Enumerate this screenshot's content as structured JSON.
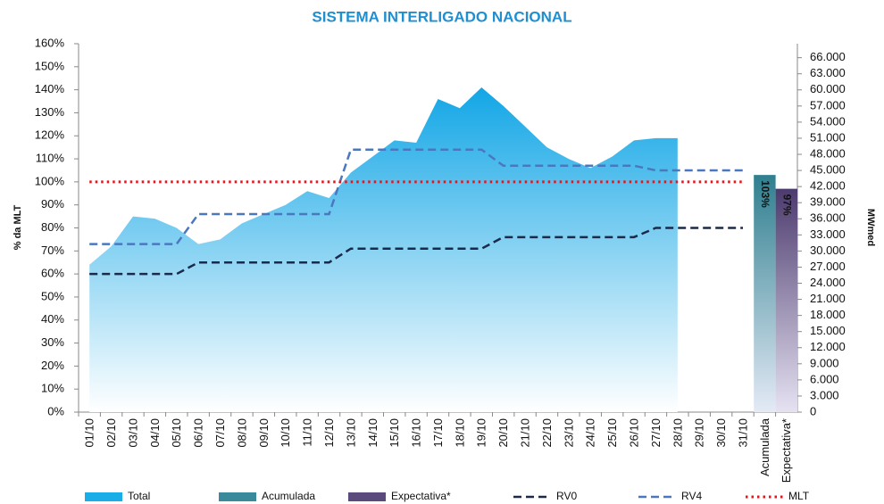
{
  "chart_data": {
    "type": "line",
    "title": "SISTEMA INTERLIGADO NACIONAL",
    "y_label": "% da MLT",
    "y2_label": "MWmed",
    "categories": [
      "01/10",
      "02/10",
      "03/10",
      "04/10",
      "05/10",
      "06/10",
      "07/10",
      "08/10",
      "09/10",
      "10/10",
      "11/10",
      "12/10",
      "13/10",
      "14/10",
      "15/10",
      "16/10",
      "17/10",
      "18/10",
      "19/10",
      "20/10",
      "21/10",
      "22/10",
      "23/10",
      "24/10",
      "25/10",
      "26/10",
      "27/10",
      "28/10",
      "29/10",
      "30/10",
      "31/10",
      "Acumulada",
      "Expectativa*"
    ],
    "series": [
      {
        "name": "Total",
        "type": "area",
        "color": "#1aaee8",
        "values": [
          64,
          72,
          85,
          84,
          80,
          73,
          75,
          82,
          86,
          90,
          96,
          93,
          104,
          111,
          118,
          117,
          136,
          132,
          141,
          133,
          124,
          115,
          110,
          106,
          111,
          118,
          119,
          119,
          null,
          null,
          null,
          null,
          null
        ]
      },
      {
        "name": "Acumulada",
        "type": "bar",
        "color": "#3a8a9c",
        "values": [
          null,
          null,
          null,
          null,
          null,
          null,
          null,
          null,
          null,
          null,
          null,
          null,
          null,
          null,
          null,
          null,
          null,
          null,
          null,
          null,
          null,
          null,
          null,
          null,
          null,
          null,
          null,
          null,
          null,
          null,
          null,
          103,
          null
        ],
        "value_labels": [
          null,
          null,
          null,
          null,
          null,
          null,
          null,
          null,
          null,
          null,
          null,
          null,
          null,
          null,
          null,
          null,
          null,
          null,
          null,
          null,
          null,
          null,
          null,
          null,
          null,
          null,
          null,
          null,
          null,
          null,
          null,
          "103%",
          null
        ]
      },
      {
        "name": "Expectativa*",
        "type": "bar",
        "color": "#5b4a7c",
        "values": [
          null,
          null,
          null,
          null,
          null,
          null,
          null,
          null,
          null,
          null,
          null,
          null,
          null,
          null,
          null,
          null,
          null,
          null,
          null,
          null,
          null,
          null,
          null,
          null,
          null,
          null,
          null,
          null,
          null,
          null,
          null,
          null,
          97
        ],
        "value_labels": [
          null,
          null,
          null,
          null,
          null,
          null,
          null,
          null,
          null,
          null,
          null,
          null,
          null,
          null,
          null,
          null,
          null,
          null,
          null,
          null,
          null,
          null,
          null,
          null,
          null,
          null,
          null,
          null,
          null,
          null,
          null,
          null,
          "97%"
        ]
      },
      {
        "name": "RV0",
        "type": "line",
        "dash": "dashed",
        "color": "#1b2a4a",
        "values": [
          60,
          60,
          60,
          60,
          60,
          65,
          65,
          65,
          65,
          65,
          65,
          65,
          71,
          71,
          71,
          71,
          71,
          71,
          71,
          76,
          76,
          76,
          76,
          76,
          76,
          76,
          80,
          80,
          80,
          80,
          80,
          null,
          null
        ]
      },
      {
        "name": "RV4",
        "type": "line",
        "dash": "dashed",
        "color": "#4a78c0",
        "values": [
          73,
          73,
          73,
          73,
          73,
          86,
          86,
          86,
          86,
          86,
          86,
          86,
          114,
          114,
          114,
          114,
          114,
          114,
          114,
          107,
          107,
          107,
          107,
          107,
          107,
          107,
          105,
          105,
          105,
          105,
          105,
          null,
          null
        ]
      },
      {
        "name": "MLT",
        "type": "line",
        "dash": "dotted",
        "color": "#e8141c",
        "values": [
          100,
          100,
          100,
          100,
          100,
          100,
          100,
          100,
          100,
          100,
          100,
          100,
          100,
          100,
          100,
          100,
          100,
          100,
          100,
          100,
          100,
          100,
          100,
          100,
          100,
          100,
          100,
          100,
          100,
          100,
          100,
          null,
          null
        ]
      }
    ],
    "ylim": [
      0,
      160
    ],
    "yticks": [
      {
        "value": 0,
        "label": "0%"
      },
      {
        "value": 10,
        "label": "10%"
      },
      {
        "value": 20,
        "label": "20%"
      },
      {
        "value": 30,
        "label": "30%"
      },
      {
        "value": 40,
        "label": "40%"
      },
      {
        "value": 50,
        "label": "50%"
      },
      {
        "value": 60,
        "label": "60%"
      },
      {
        "value": 70,
        "label": "70%"
      },
      {
        "value": 80,
        "label": "80%"
      },
      {
        "value": 90,
        "label": "90%"
      },
      {
        "value": 100,
        "label": "100%"
      },
      {
        "value": 110,
        "label": "110%"
      },
      {
        "value": 120,
        "label": "120%"
      },
      {
        "value": 130,
        "label": "130%"
      },
      {
        "value": 140,
        "label": "140%"
      },
      {
        "value": 150,
        "label": "150%"
      },
      {
        "value": 160,
        "label": "160%"
      }
    ],
    "y2lim": [
      0,
      68600
    ],
    "y2ticks": [
      0,
      {
        "value": 3000,
        "label": "3.000"
      },
      {
        "value": 6000,
        "label": "6.000"
      },
      {
        "value": 9000,
        "label": "9.000"
      },
      {
        "value": 12000,
        "label": "12.000"
      },
      {
        "value": 15000,
        "label": "15.000"
      },
      {
        "value": 18000,
        "label": "18.000"
      },
      {
        "value": 21000,
        "label": "21.000"
      },
      {
        "value": 24000,
        "label": "24.000"
      },
      {
        "value": 27000,
        "label": "27.000"
      },
      {
        "value": 30000,
        "label": "30.000"
      },
      {
        "value": 33000,
        "label": "33.000"
      },
      {
        "value": 36000,
        "label": "36.000"
      },
      {
        "value": 39000,
        "label": "39.000"
      },
      {
        "value": 42000,
        "label": "42.000"
      },
      {
        "value": 45000,
        "label": "45.000"
      },
      {
        "value": 48000,
        "label": "48.000"
      },
      {
        "value": 51000,
        "label": "51.000"
      },
      {
        "value": 54000,
        "label": "54.000"
      },
      {
        "value": 57000,
        "label": "57.000"
      },
      {
        "value": 60000,
        "label": "60.000"
      },
      {
        "value": 63000,
        "label": "63.000"
      },
      {
        "value": 66000,
        "label": "66.000"
      }
    ],
    "grid": false,
    "legend": "bottom"
  }
}
